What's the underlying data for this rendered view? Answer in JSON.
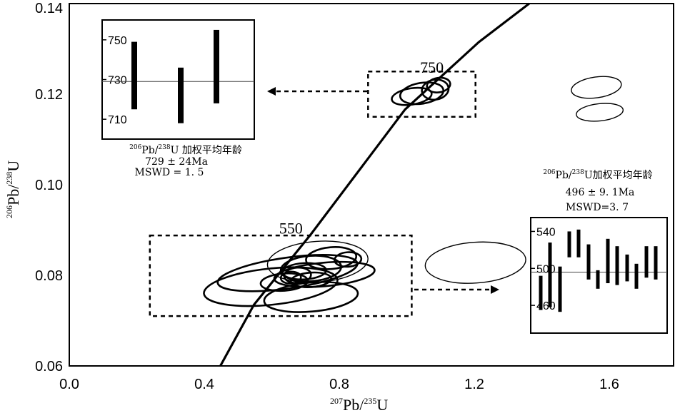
{
  "chart_data": {
    "type": "concordia",
    "xlabel": {
      "sup1": "207",
      "base1": "Pb/",
      "sup2": "235",
      "base2": "U"
    },
    "ylabel": {
      "sup1": "206",
      "base1": "Pb/",
      "sup2": "238",
      "base2": "U"
    },
    "xlim": [
      0.0,
      1.8
    ],
    "ylim": [
      0.06,
      0.14
    ],
    "xticks": [
      0.0,
      0.4,
      0.8,
      1.2,
      1.6
    ],
    "xtick_labels": [
      "0.0",
      "0.4",
      "0.8",
      "1.2",
      "1.6"
    ],
    "yticks": [
      0.06,
      0.08,
      0.1,
      0.12,
      0.14
    ],
    "ytick_labels": [
      "0.06",
      "0.08",
      "0.10",
      "0.12",
      "0.14"
    ],
    "concordia_labels": [
      {
        "text": "550",
        "x": 0.66,
        "y": 0.0892
      },
      {
        "text": "750",
        "x": 1.08,
        "y": 0.1247
      }
    ],
    "concordia_line": [
      [
        0.45,
        0.06
      ],
      [
        0.55,
        0.0735
      ],
      [
        0.72,
        0.0891
      ],
      [
        1.0,
        0.1166
      ],
      [
        1.22,
        0.1315
      ],
      [
        1.37,
        0.14
      ]
    ],
    "ellipses": {
      "group_550": [
        {
          "cx": 0.65,
          "cy": 0.0805,
          "rx": 0.42,
          "ry": 0.0034,
          "angle": -8,
          "bold": true
        },
        {
          "cx": 0.6,
          "cy": 0.0775,
          "rx": 0.4,
          "ry": 0.004,
          "angle": -6,
          "bold": true
        },
        {
          "cx": 0.76,
          "cy": 0.0802,
          "rx": 0.3,
          "ry": 0.0026,
          "angle": -5,
          "bold": true
        },
        {
          "cx": 0.72,
          "cy": 0.0815,
          "rx": 0.18,
          "ry": 0.0028,
          "angle": -4,
          "bold": true
        },
        {
          "cx": 0.7,
          "cy": 0.0809,
          "rx": 0.13,
          "ry": 0.0018,
          "angle": -3,
          "bold": true
        },
        {
          "cx": 0.68,
          "cy": 0.08,
          "rx": 0.08,
          "ry": 0.0017,
          "angle": -4,
          "bold": true
        },
        {
          "cx": 0.66,
          "cy": 0.0795,
          "rx": 0.06,
          "ry": 0.0013,
          "angle": -4,
          "bold": true
        },
        {
          "cx": 0.72,
          "cy": 0.079,
          "rx": 0.12,
          "ry": 0.0016,
          "angle": -4,
          "bold": true
        },
        {
          "cx": 0.64,
          "cy": 0.0785,
          "rx": 0.14,
          "ry": 0.0019,
          "angle": -4,
          "bold": true
        },
        {
          "cx": 0.78,
          "cy": 0.0838,
          "rx": 0.15,
          "ry": 0.0024,
          "angle": -5,
          "bold": true
        },
        {
          "cx": 0.83,
          "cy": 0.0835,
          "rx": 0.08,
          "ry": 0.0016,
          "angle": -4,
          "bold": true
        },
        {
          "cx": 0.72,
          "cy": 0.0752,
          "rx": 0.28,
          "ry": 0.0032,
          "angle": -5,
          "bold": true
        },
        {
          "cx": 0.74,
          "cy": 0.083,
          "rx": 0.3,
          "ry": 0.0045,
          "angle": -4,
          "bold": false
        },
        {
          "cx": 1.21,
          "cy": 0.0828,
          "rx": 0.3,
          "ry": 0.0045,
          "angle": -4,
          "bold": false
        }
      ],
      "group_750": [
        {
          "cx": 1.02,
          "cy": 0.1195,
          "rx": 0.12,
          "ry": 0.0018,
          "angle": -9,
          "bold": true
        },
        {
          "cx": 1.05,
          "cy": 0.1202,
          "rx": 0.13,
          "ry": 0.0023,
          "angle": -9,
          "bold": true
        },
        {
          "cx": 1.09,
          "cy": 0.121,
          "rx": 0.08,
          "ry": 0.0022,
          "angle": -9,
          "bold": true
        },
        {
          "cx": 1.1,
          "cy": 0.122,
          "rx": 0.07,
          "ry": 0.0016,
          "angle": -9,
          "bold": true
        },
        {
          "cx": 1.57,
          "cy": 0.1215,
          "rx": 0.15,
          "ry": 0.0023,
          "angle": -8,
          "bold": false
        },
        {
          "cx": 1.58,
          "cy": 0.116,
          "rx": 0.14,
          "ry": 0.0019,
          "angle": -6,
          "bold": false
        }
      ]
    },
    "dashed_boxes": [
      {
        "name": "box-550",
        "x0": 0.24,
        "x1": 1.02,
        "y0": 0.071,
        "y1": 0.0888
      },
      {
        "name": "box-750",
        "x0": 0.89,
        "x1": 1.21,
        "y0": 0.115,
        "y1": 0.125
      }
    ],
    "insets": [
      {
        "name": "inset-750",
        "ylim": [
          700,
          760
        ],
        "yticks": [
          710,
          730,
          750
        ],
        "mean": 729,
        "bars": [
          [
            715,
            749
          ],
          [
            708,
            736
          ],
          [
            718,
            755
          ]
        ],
        "caption": {
          "sup1": "206",
          "t1": "Pb/",
          "sup2": "238",
          "t2": "U 加权平均年龄",
          "line2": "729 ± 24Ma",
          "line3": "MSWD = 1. 5"
        }
      },
      {
        "name": "inset-550",
        "ylim": [
          430,
          555
        ],
        "yticks": [
          460,
          500,
          540
        ],
        "mean": 496,
        "bars": [
          [
            455,
            492
          ],
          [
            458,
            528
          ],
          [
            453,
            502
          ],
          [
            512,
            540
          ],
          [
            512,
            542
          ],
          [
            488,
            526
          ],
          [
            478,
            498
          ],
          [
            484,
            532
          ],
          [
            482,
            524
          ],
          [
            486,
            515
          ],
          [
            478,
            505
          ],
          [
            490,
            524
          ],
          [
            488,
            524
          ]
        ],
        "caption": {
          "sup1": "206",
          "t1": "Pb/",
          "sup2": "238",
          "t2": "U加权平均年龄",
          "line2": "496 ± 9. 1Ma",
          "line3": "MSWD=3. 7"
        }
      }
    ]
  }
}
